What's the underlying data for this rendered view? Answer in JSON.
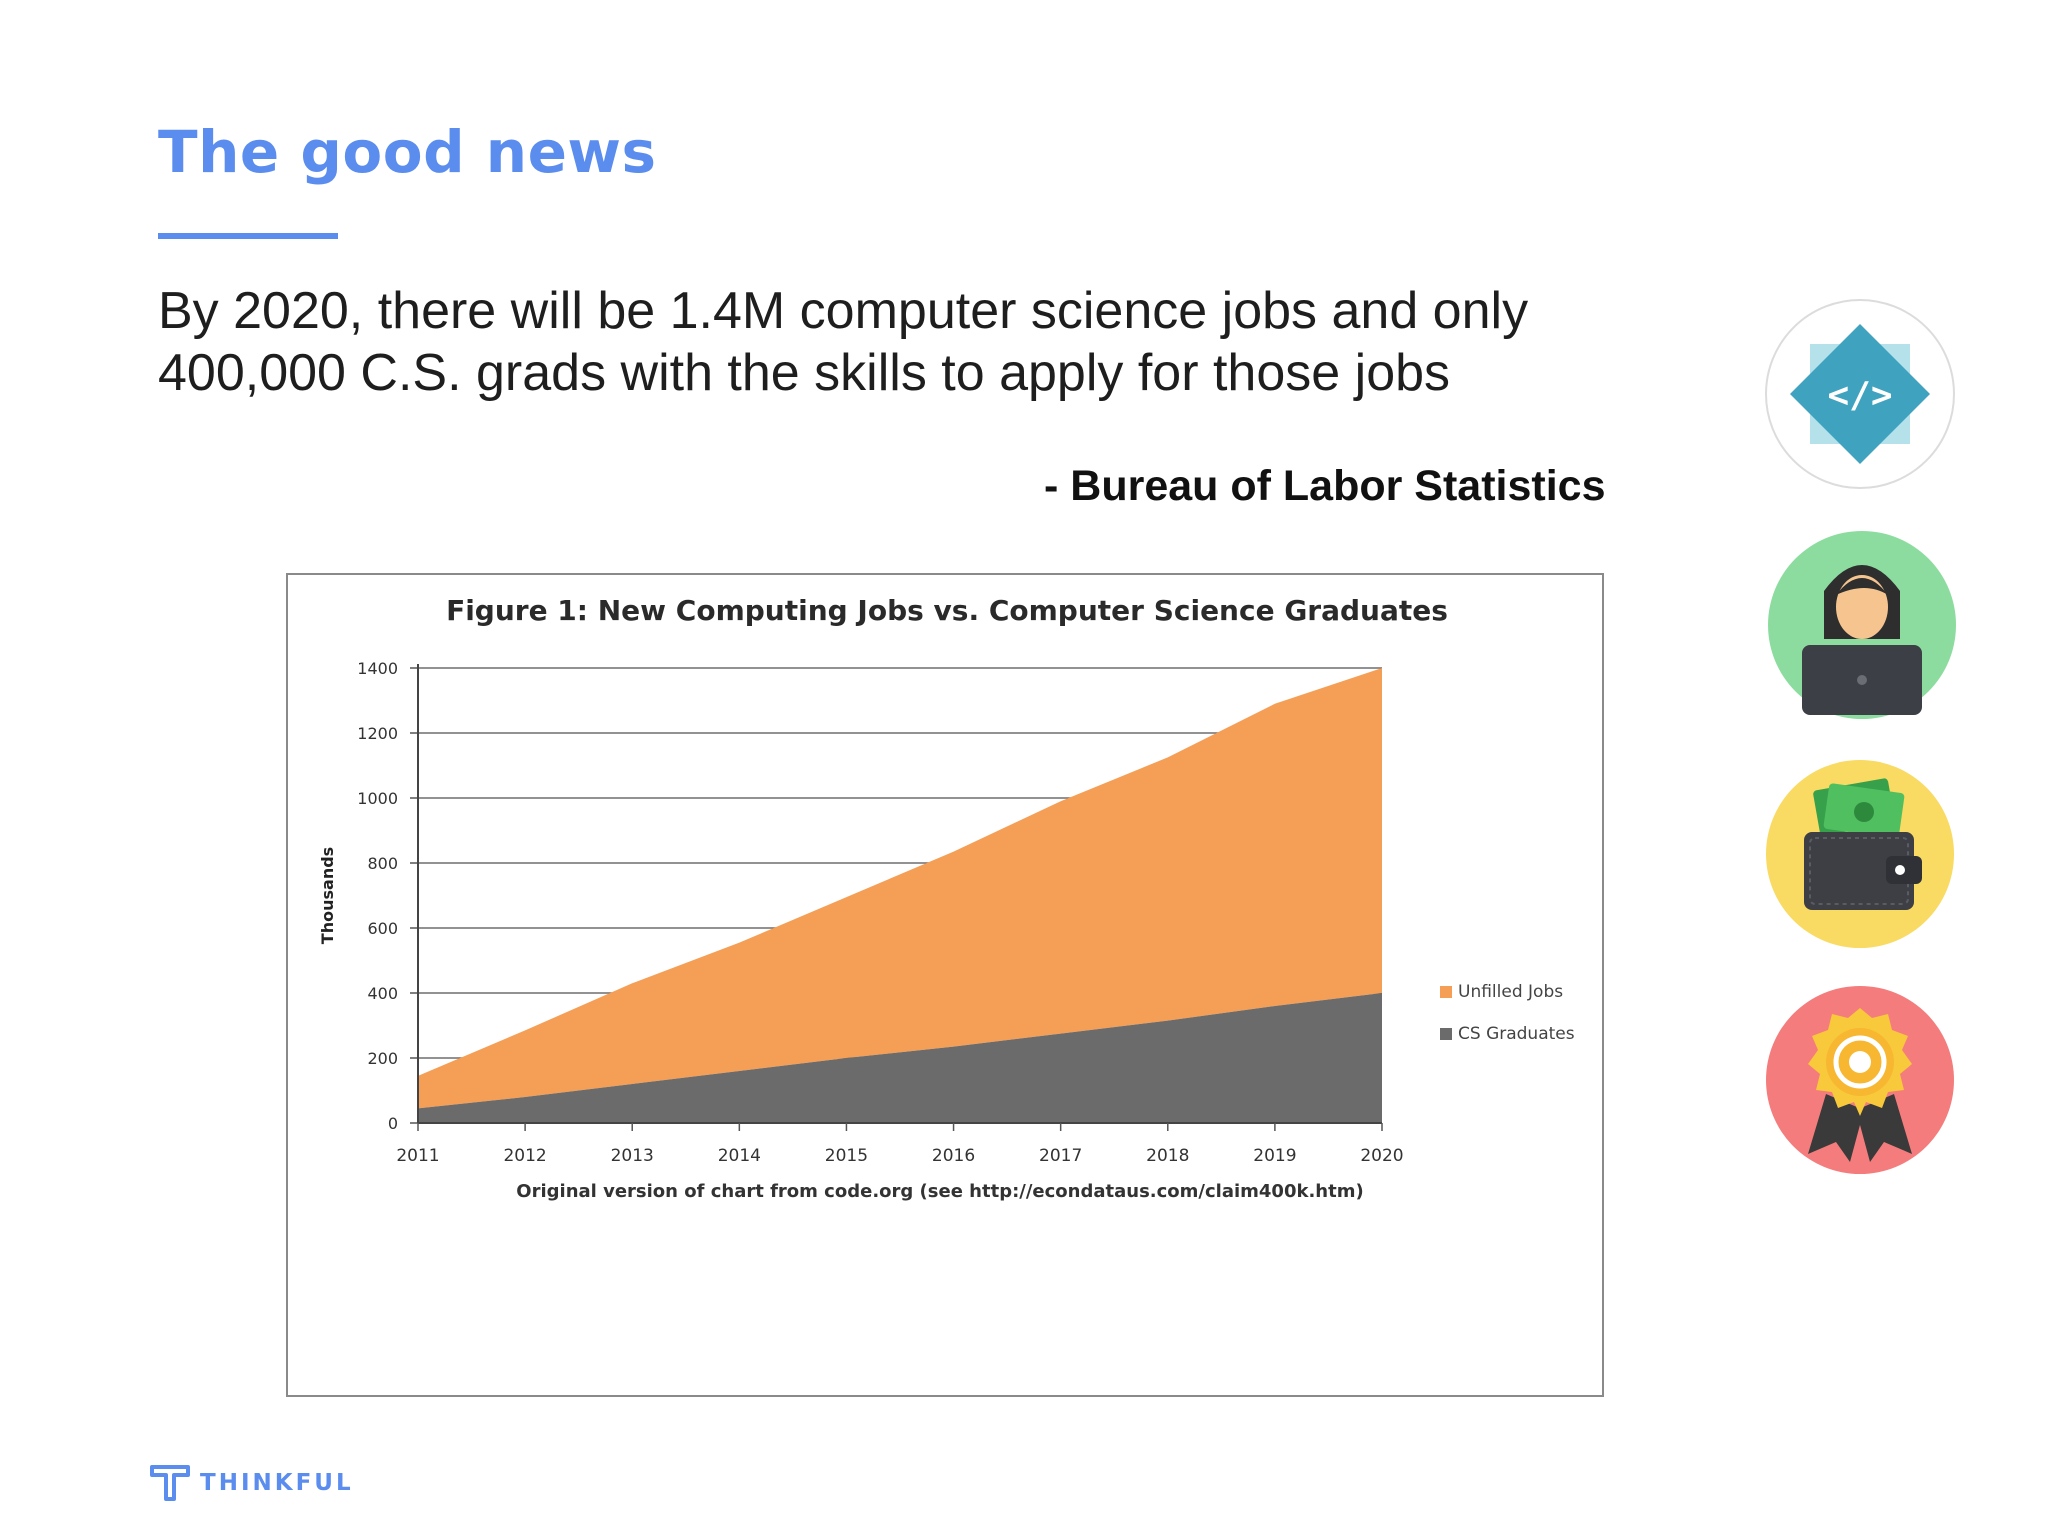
{
  "slide": {
    "title": "The good news",
    "body_line1": "By 2020, there will be 1.4M computer science jobs and only",
    "body_line2": "400,000 C.S. grads with the skills to apply for those jobs",
    "attribution": "- Bureau of Labor Statistics",
    "logo_text": "THINKFUL"
  },
  "side_icons": [
    "code-diamond-icon",
    "developer-at-laptop-icon",
    "wallet-money-icon",
    "award-badge-icon"
  ],
  "colors": {
    "accent": "#5b8def",
    "unfilled_jobs": "#f59e55",
    "cs_graduates": "#6b6b6b"
  },
  "chart_data": {
    "type": "area",
    "stacked": true,
    "title": "Figure 1: New Computing Jobs vs. Computer Science Graduates",
    "ylabel": "Thousands",
    "xlabel": "Original version of chart from code.org (see http://econdataus.com/claim400k.htm)",
    "x": [
      "2011",
      "2012",
      "2013",
      "2014",
      "2015",
      "2016",
      "2017",
      "2018",
      "2019",
      "2020"
    ],
    "yticks": [
      "0",
      "200",
      "400",
      "600",
      "800",
      "1000",
      "1200",
      "1400"
    ],
    "ylim": [
      0,
      1400
    ],
    "grid": true,
    "legend": "right",
    "series": [
      {
        "name": "Unfilled Jobs",
        "values": [
          100,
          205,
          310,
          395,
          495,
          600,
          715,
          810,
          930,
          1000
        ]
      },
      {
        "name": "CS Graduates",
        "values": [
          45,
          80,
          120,
          160,
          200,
          235,
          275,
          315,
          360,
          400
        ]
      }
    ]
  }
}
